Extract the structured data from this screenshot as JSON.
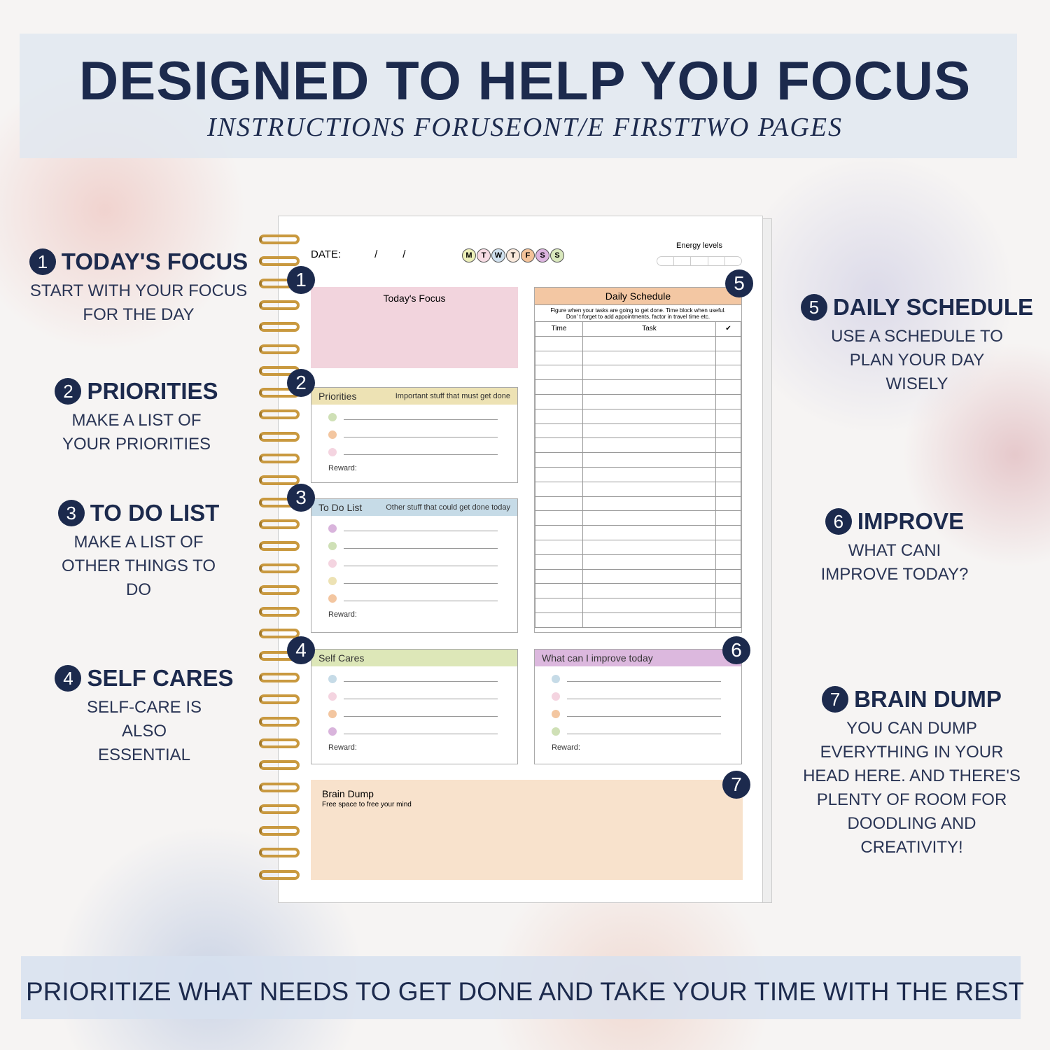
{
  "header": {
    "title": "DESIGNED TO HELP YOU FOCUS",
    "subtitle": "INSTRUCTIONS FORUSEONT/E FIRSTTWO PAGES"
  },
  "footer": "PRIORITIZE WHAT NEEDS TO GET DONE AND TAKE YOUR TIME WITH THE REST",
  "features": [
    {
      "n": "1",
      "title": "TODAY'S FOCUS",
      "desc": "START WITH YOUR FOCUS FOR THE DAY"
    },
    {
      "n": "2",
      "title": "PRIORITIES",
      "desc": "MAKE A LIST OF YOUR PRIORITIES"
    },
    {
      "n": "3",
      "title": "TO DO LIST",
      "desc": "MAKE A LIST OF OTHER THINGS TO DO"
    },
    {
      "n": "4",
      "title": "SELF CARES",
      "desc": "SELF-CARE IS ALSO ESSENTIAL"
    },
    {
      "n": "5",
      "title": "DAILY SCHEDULE",
      "desc": "USE A SCHEDULE TO PLAN YOUR DAY WISELY"
    },
    {
      "n": "6",
      "title": "IMPROVE",
      "desc": "WHAT CANI IMPROVE TODAY?"
    },
    {
      "n": "7",
      "title": "BRAIN DUMP",
      "desc": "YOU CAN DUMP EVERYTHING IN YOUR HEAD HERE. AND THERE'S PLENTY OF ROOM FOR DOODLING AND CREATIVITY!"
    }
  ],
  "planner": {
    "date_label": "DATE:",
    "date_sep": "/",
    "energy_label": "Energy levels",
    "days": [
      {
        "l": "M",
        "c": "#ecefb8"
      },
      {
        "l": "T",
        "c": "#f6dbe3"
      },
      {
        "l": "W",
        "c": "#cfe0ee"
      },
      {
        "l": "T",
        "c": "#fae9dc"
      },
      {
        "l": "F",
        "c": "#f4c39a"
      },
      {
        "l": "S",
        "c": "#dcb4df"
      },
      {
        "l": "S",
        "c": "#d9e8bd"
      }
    ],
    "focus": "Today's Focus",
    "priorities": {
      "title": "Priorities",
      "hint": "Important stuff that must get done"
    },
    "todo": {
      "title": "To Do List",
      "hint": "Other stuff that could get done today"
    },
    "selfcare": {
      "title": "Self Cares"
    },
    "improve": {
      "title": "What  can I  improve  today"
    },
    "reward": "Reward:",
    "schedule": {
      "title": "Daily Schedule",
      "note": "Figure when your tasks are going to get done.  Time block when useful. Don' t forget to add appointments, factor in travel time etc.",
      "col_time": "Time",
      "col_task": "Task",
      "col_check": "✔"
    },
    "brain": {
      "title": "Brain Dump",
      "hint": "Free space to free your mind"
    },
    "colors": {
      "focus": "#f2d4dd",
      "priorities": "#ede2b4",
      "todo": "#c6dbe7",
      "selfcare": "#dde7b8",
      "improve": "#dcb8de",
      "schedule": "#f3c7a3",
      "brain": "#f8e2cc"
    }
  }
}
